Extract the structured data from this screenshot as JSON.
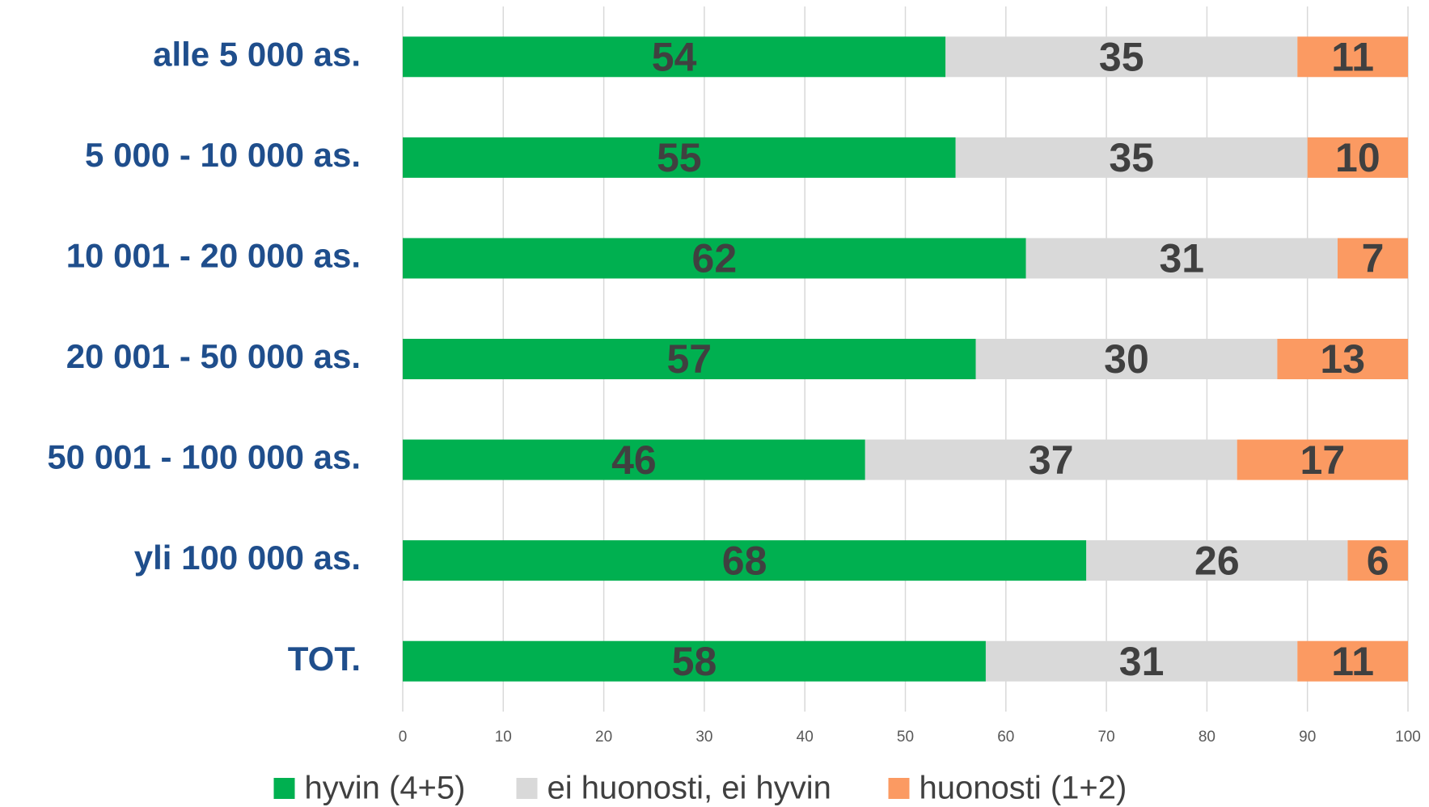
{
  "chart_data": {
    "type": "stacked_barh",
    "categories": [
      "alle 5 000 as.",
      "5 000 - 10 000 as.",
      "10 001 - 20 000 as.",
      "20 001 - 50 000 as.",
      "50 001 - 100 000 as.",
      "yli 100 000 as.",
      "TOT."
    ],
    "series": [
      {
        "name": "hyvin (4+5)",
        "color": "#00b050",
        "values": [
          54,
          55,
          62,
          57,
          46,
          68,
          58
        ]
      },
      {
        "name": "ei huonosti, ei hyvin",
        "color": "#d9d9d9",
        "values": [
          35,
          35,
          31,
          30,
          37,
          26,
          31
        ]
      },
      {
        "name": "huonosti (1+2)",
        "color": "#fb9a62",
        "values": [
          11,
          10,
          7,
          13,
          17,
          6,
          11
        ]
      }
    ],
    "xlim": [
      0,
      100
    ],
    "xticks": [
      0,
      10,
      20,
      30,
      40,
      50,
      60,
      70,
      80,
      90,
      100
    ],
    "grid": true,
    "legend": "bottom"
  }
}
